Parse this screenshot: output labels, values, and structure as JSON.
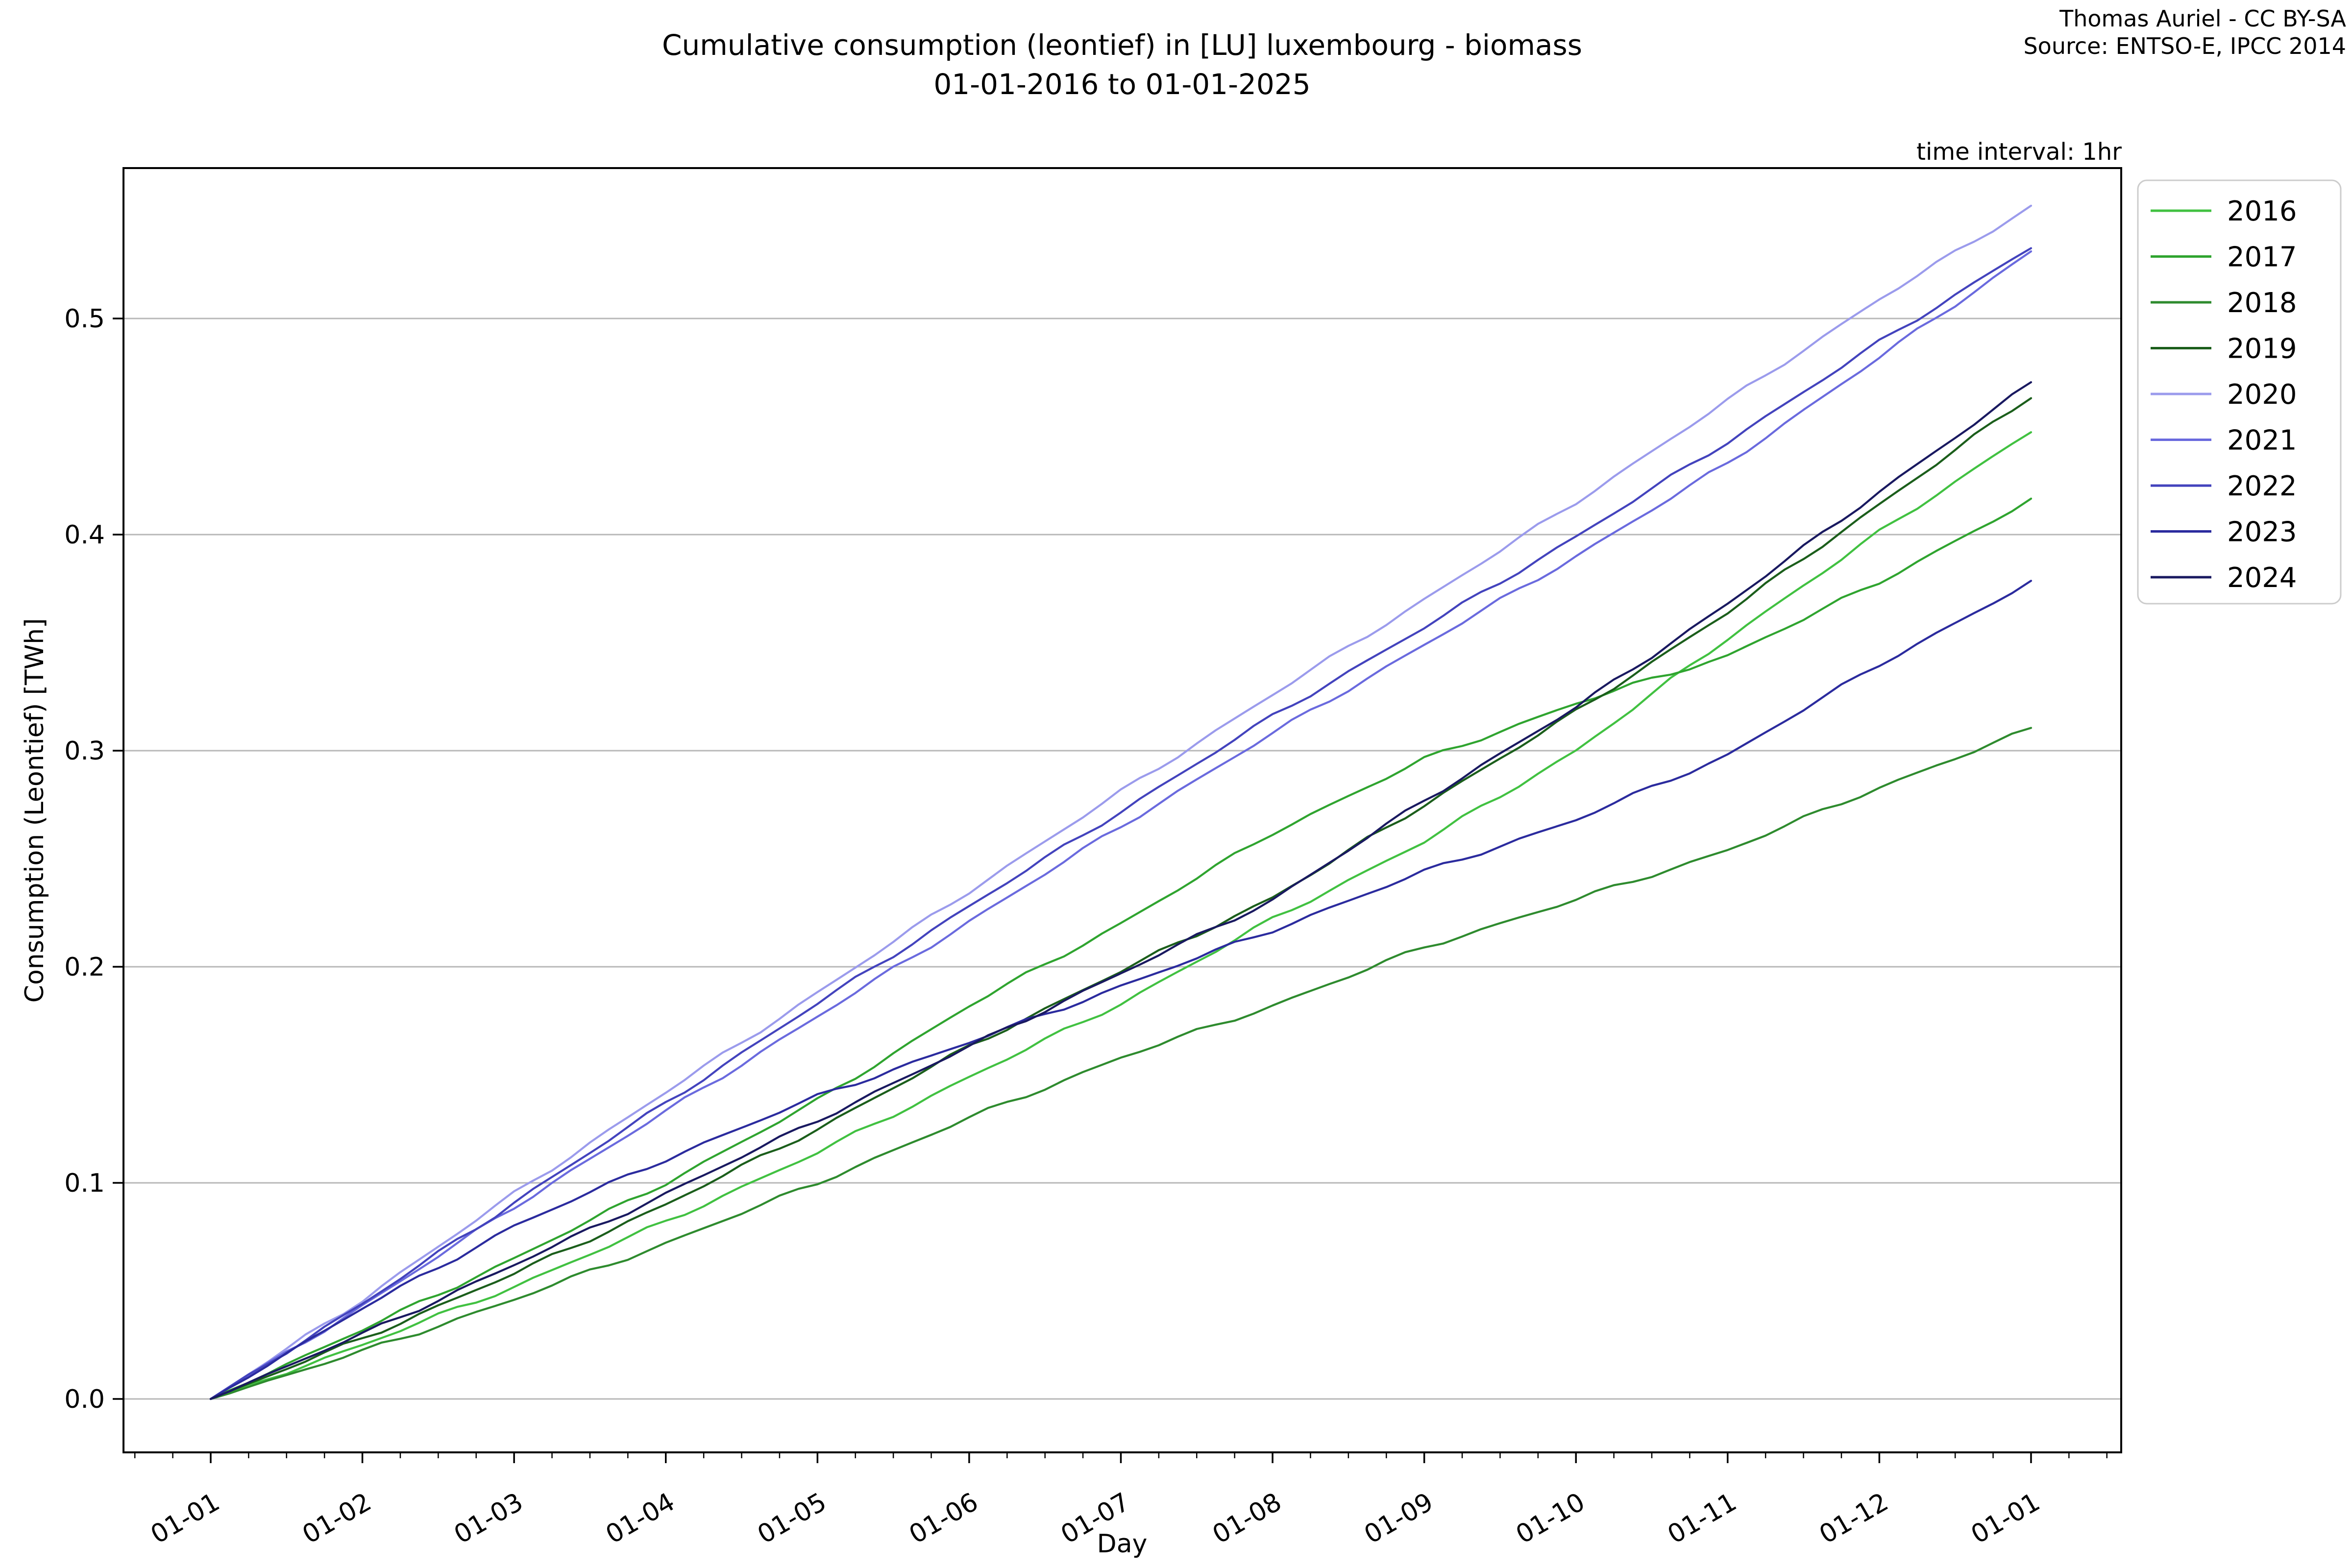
{
  "figure": {
    "title_line1": "Cumulative consumption (leontief) in [LU] luxembourg - biomass",
    "title_line2": "01-01-2016 to 01-01-2025",
    "attribution_line1": "Thomas Auriel - CC BY-SA",
    "attribution_line2": "Source: ENTSO-E, IPCC 2014",
    "time_interval_note": "time interval: 1hr"
  },
  "chart_data": {
    "type": "line",
    "title": "Cumulative consumption (leontief) in [LU] luxembourg - biomass 01-01-2016 to 01-01-2025",
    "xlabel": "Day",
    "ylabel": "Consumption (Leontief) [TWh]",
    "x_tick_labels": [
      "01-01",
      "01-02",
      "01-03",
      "01-04",
      "01-05",
      "01-06",
      "01-07",
      "01-08",
      "01-09",
      "01-10",
      "01-11",
      "01-12",
      "01-01"
    ],
    "x_months": [
      0,
      1,
      2,
      3,
      4,
      5,
      6,
      7,
      8,
      9,
      10,
      11,
      12
    ],
    "y_ticks": [
      0.0,
      0.1,
      0.2,
      0.3,
      0.4,
      0.5
    ],
    "y_tick_labels": [
      "0.0",
      "0.1",
      "0.2",
      "0.3",
      "0.4",
      "0.5"
    ],
    "ylim": [
      -0.029,
      0.579
    ],
    "grid": "horizontal",
    "grid_color": "#b8b8b8",
    "spine_color": "#000000",
    "legend_position": "upper-right-outside",
    "legend_border_color": "#cccccc",
    "series": [
      {
        "name": "2016",
        "color": "#41c141",
        "values": [
          0,
          0.025,
          0.052,
          0.082,
          0.114,
          0.149,
          0.183,
          0.222,
          0.258,
          0.3,
          0.352,
          0.401,
          0.448
        ]
      },
      {
        "name": "2017",
        "color": "#2fa42f",
        "values": [
          0,
          0.032,
          0.065,
          0.1,
          0.138,
          0.182,
          0.22,
          0.262,
          0.296,
          0.322,
          0.344,
          0.378,
          0.416
        ]
      },
      {
        "name": "2018",
        "color": "#2e8b2e",
        "values": [
          0,
          0.022,
          0.046,
          0.072,
          0.1,
          0.13,
          0.158,
          0.182,
          0.209,
          0.231,
          0.254,
          0.283,
          0.31
        ]
      },
      {
        "name": "2019",
        "color": "#1b5e1b",
        "values": [
          0,
          0.028,
          0.058,
          0.09,
          0.125,
          0.163,
          0.198,
          0.232,
          0.275,
          0.318,
          0.364,
          0.414,
          0.464
        ]
      },
      {
        "name": "2020",
        "color": "#9b9bec",
        "values": [
          0,
          0.046,
          0.095,
          0.142,
          0.188,
          0.235,
          0.281,
          0.326,
          0.37,
          0.415,
          0.462,
          0.509,
          0.552
        ]
      },
      {
        "name": "2021",
        "color": "#6a6ade",
        "values": [
          0,
          0.043,
          0.089,
          0.133,
          0.177,
          0.221,
          0.265,
          0.308,
          0.349,
          0.39,
          0.433,
          0.482,
          0.531
        ]
      },
      {
        "name": "2022",
        "color": "#4343bd",
        "values": [
          0,
          0.044,
          0.091,
          0.137,
          0.183,
          0.228,
          0.272,
          0.316,
          0.357,
          0.399,
          0.443,
          0.489,
          0.533
        ]
      },
      {
        "name": "2023",
        "color": "#2b2b9e",
        "values": [
          0,
          0.042,
          0.08,
          0.111,
          0.14,
          0.165,
          0.191,
          0.217,
          0.244,
          0.268,
          0.298,
          0.34,
          0.378
        ]
      },
      {
        "name": "2024",
        "color": "#191960",
        "values": [
          0,
          0.03,
          0.062,
          0.095,
          0.129,
          0.163,
          0.197,
          0.231,
          0.277,
          0.32,
          0.368,
          0.42,
          0.47
        ]
      }
    ]
  }
}
